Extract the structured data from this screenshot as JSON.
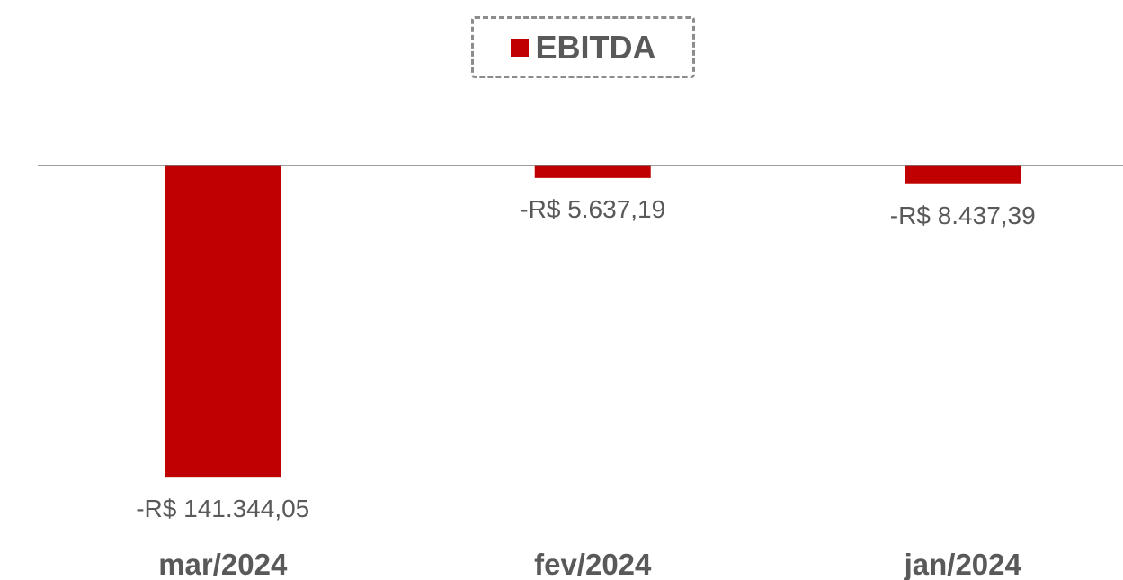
{
  "chart_data": {
    "type": "bar",
    "series": [
      {
        "name": "EBITDA",
        "color": "#c00000"
      }
    ],
    "categories": [
      "mar/2024",
      "fev/2024",
      "jan/2024"
    ],
    "values": [
      -141344.05,
      -5637.19,
      -8437.39
    ],
    "value_labels": [
      "-R$ 141.344,05",
      "-R$ 5.637,19",
      "-R$ 8.437,39"
    ],
    "ylim": [
      -160000,
      0
    ],
    "grid": false,
    "legend": "top"
  }
}
